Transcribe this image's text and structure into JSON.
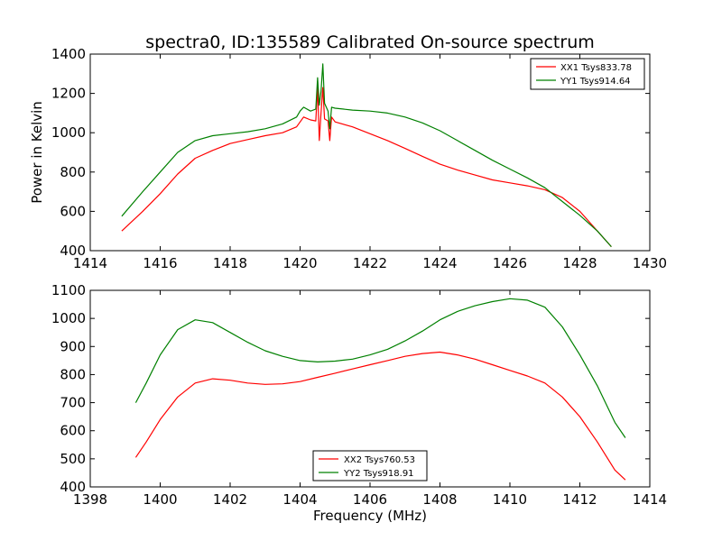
{
  "chart_data": [
    {
      "type": "line",
      "title": "spectra0, ID:135589 Calibrated On-source spectrum",
      "xlabel": "",
      "ylabel": "Power in Kelvin",
      "xlim": [
        1414,
        1430
      ],
      "ylim": [
        400,
        1400
      ],
      "xticks": [
        "1414",
        "1416",
        "1418",
        "1420",
        "1422",
        "1424",
        "1426",
        "1428",
        "1430"
      ],
      "yticks": [
        "400",
        "600",
        "800",
        "1000",
        "1200",
        "1400"
      ],
      "legend": "top-right",
      "grid": false,
      "series": [
        {
          "name": "XX1 Tsys833.78",
          "color": "#ff0000",
          "points": [
            [
              1414.9,
              500
            ],
            [
              1415.5,
              600
            ],
            [
              1416.0,
              690
            ],
            [
              1416.5,
              790
            ],
            [
              1417.0,
              870
            ],
            [
              1417.5,
              910
            ],
            [
              1418.0,
              945
            ],
            [
              1418.5,
              965
            ],
            [
              1419.0,
              985
            ],
            [
              1419.5,
              1000
            ],
            [
              1419.9,
              1030
            ],
            [
              1420.1,
              1080
            ],
            [
              1420.3,
              1065
            ],
            [
              1420.45,
              1060
            ],
            [
              1420.5,
              1230
            ],
            [
              1420.55,
              960
            ],
            [
              1420.6,
              1100
            ],
            [
              1420.65,
              1230
            ],
            [
              1420.7,
              1070
            ],
            [
              1420.8,
              1060
            ],
            [
              1420.85,
              960
            ],
            [
              1420.9,
              1080
            ],
            [
              1421.0,
              1055
            ],
            [
              1421.5,
              1030
            ],
            [
              1422.0,
              995
            ],
            [
              1422.5,
              960
            ],
            [
              1423.0,
              920
            ],
            [
              1423.5,
              880
            ],
            [
              1424.0,
              840
            ],
            [
              1424.5,
              810
            ],
            [
              1425.0,
              785
            ],
            [
              1425.5,
              760
            ],
            [
              1426.0,
              745
            ],
            [
              1426.5,
              730
            ],
            [
              1427.0,
              710
            ],
            [
              1427.5,
              670
            ],
            [
              1428.0,
              600
            ],
            [
              1428.5,
              500
            ],
            [
              1428.9,
              420
            ]
          ]
        },
        {
          "name": "YY1 Tsys914.64",
          "color": "#008000",
          "points": [
            [
              1414.9,
              575
            ],
            [
              1415.5,
              700
            ],
            [
              1416.0,
              800
            ],
            [
              1416.5,
              900
            ],
            [
              1417.0,
              960
            ],
            [
              1417.5,
              985
            ],
            [
              1418.0,
              995
            ],
            [
              1418.5,
              1005
            ],
            [
              1419.0,
              1020
            ],
            [
              1419.5,
              1045
            ],
            [
              1419.9,
              1080
            ],
            [
              1420.0,
              1110
            ],
            [
              1420.1,
              1130
            ],
            [
              1420.3,
              1110
            ],
            [
              1420.45,
              1120
            ],
            [
              1420.5,
              1280
            ],
            [
              1420.55,
              1140
            ],
            [
              1420.6,
              1210
            ],
            [
              1420.65,
              1350
            ],
            [
              1420.7,
              1150
            ],
            [
              1420.8,
              1110
            ],
            [
              1420.85,
              1020
            ],
            [
              1420.9,
              1130
            ],
            [
              1421.0,
              1125
            ],
            [
              1421.5,
              1115
            ],
            [
              1422.0,
              1110
            ],
            [
              1422.5,
              1100
            ],
            [
              1423.0,
              1080
            ],
            [
              1423.5,
              1050
            ],
            [
              1424.0,
              1010
            ],
            [
              1424.5,
              960
            ],
            [
              1425.0,
              910
            ],
            [
              1425.5,
              860
            ],
            [
              1426.0,
              815
            ],
            [
              1426.5,
              770
            ],
            [
              1427.0,
              720
            ],
            [
              1427.5,
              650
            ],
            [
              1428.0,
              580
            ],
            [
              1428.5,
              500
            ],
            [
              1428.9,
              420
            ]
          ]
        }
      ]
    },
    {
      "type": "line",
      "title": "",
      "xlabel": "Frequency (MHz)",
      "ylabel": "",
      "xlim": [
        1398,
        1414
      ],
      "ylim": [
        400,
        1100
      ],
      "xticks": [
        "1398",
        "1400",
        "1402",
        "1404",
        "1406",
        "1408",
        "1410",
        "1412",
        "1414"
      ],
      "yticks": [
        "400",
        "500",
        "600",
        "700",
        "800",
        "900",
        "1000",
        "1100"
      ],
      "legend": "bottom-center",
      "grid": false,
      "series": [
        {
          "name": "XX2 Tsys760.53",
          "color": "#ff0000",
          "points": [
            [
              1399.3,
              505
            ],
            [
              1399.6,
              560
            ],
            [
              1400.0,
              640
            ],
            [
              1400.5,
              720
            ],
            [
              1401.0,
              770
            ],
            [
              1401.5,
              785
            ],
            [
              1402.0,
              780
            ],
            [
              1402.5,
              770
            ],
            [
              1403.0,
              765
            ],
            [
              1403.5,
              767
            ],
            [
              1404.0,
              775
            ],
            [
              1404.5,
              790
            ],
            [
              1405.0,
              805
            ],
            [
              1405.5,
              820
            ],
            [
              1406.0,
              835
            ],
            [
              1406.5,
              850
            ],
            [
              1407.0,
              865
            ],
            [
              1407.5,
              875
            ],
            [
              1408.0,
              880
            ],
            [
              1408.5,
              870
            ],
            [
              1409.0,
              855
            ],
            [
              1409.5,
              835
            ],
            [
              1410.0,
              815
            ],
            [
              1410.5,
              795
            ],
            [
              1411.0,
              770
            ],
            [
              1411.5,
              720
            ],
            [
              1412.0,
              650
            ],
            [
              1412.5,
              560
            ],
            [
              1413.0,
              460
            ],
            [
              1413.3,
              425
            ]
          ]
        },
        {
          "name": "YY2 Tsys918.91",
          "color": "#008000",
          "points": [
            [
              1399.3,
              700
            ],
            [
              1399.6,
              770
            ],
            [
              1400.0,
              870
            ],
            [
              1400.5,
              960
            ],
            [
              1401.0,
              995
            ],
            [
              1401.5,
              985
            ],
            [
              1402.0,
              950
            ],
            [
              1402.5,
              915
            ],
            [
              1403.0,
              885
            ],
            [
              1403.5,
              865
            ],
            [
              1404.0,
              850
            ],
            [
              1404.5,
              845
            ],
            [
              1405.0,
              848
            ],
            [
              1405.5,
              855
            ],
            [
              1406.0,
              870
            ],
            [
              1406.5,
              890
            ],
            [
              1407.0,
              920
            ],
            [
              1407.5,
              955
            ],
            [
              1408.0,
              995
            ],
            [
              1408.5,
              1025
            ],
            [
              1409.0,
              1045
            ],
            [
              1409.5,
              1060
            ],
            [
              1410.0,
              1070
            ],
            [
              1410.5,
              1065
            ],
            [
              1411.0,
              1040
            ],
            [
              1411.5,
              970
            ],
            [
              1412.0,
              870
            ],
            [
              1412.5,
              760
            ],
            [
              1413.0,
              630
            ],
            [
              1413.3,
              575
            ]
          ]
        }
      ]
    }
  ]
}
